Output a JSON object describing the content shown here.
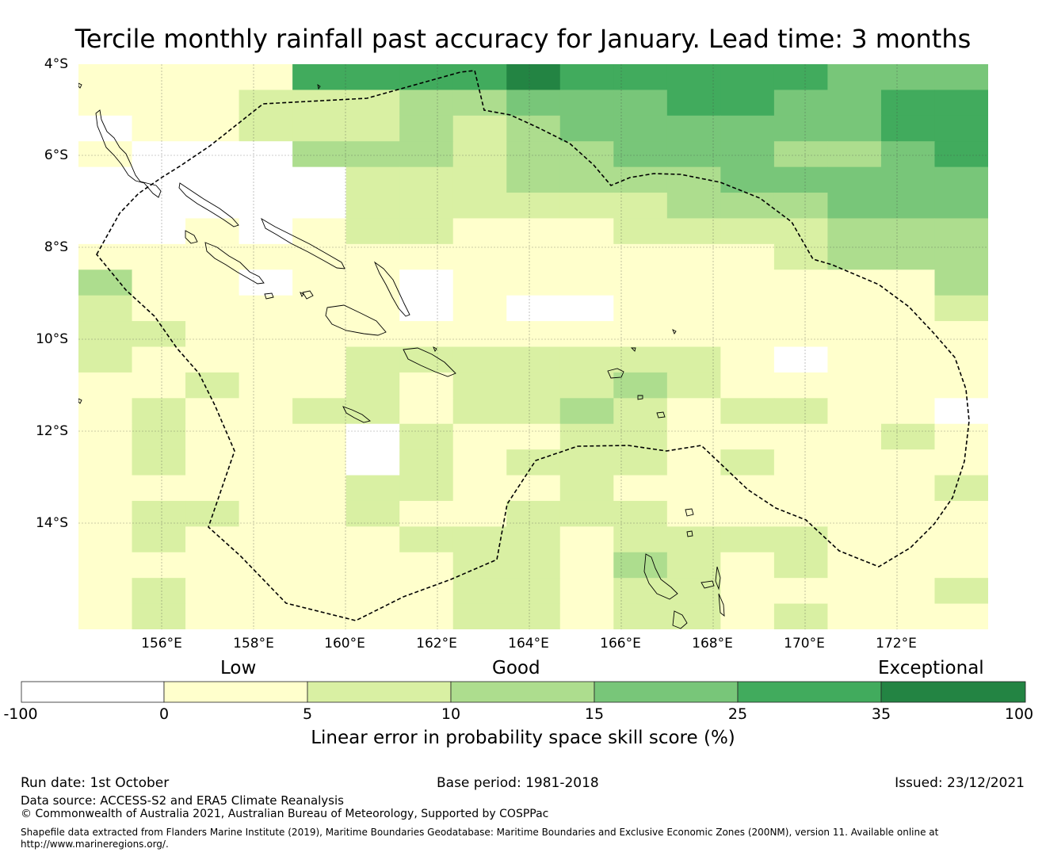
{
  "title": "Tercile monthly rainfall past accuracy for January. Lead time: 3 months",
  "axes": {
    "y_labels": [
      "4°S",
      "6°S",
      "8°S",
      "10°S",
      "12°S",
      "14°S"
    ],
    "x_labels": [
      "156°E",
      "158°E",
      "160°E",
      "162°E",
      "164°E",
      "166°E",
      "168°E",
      "170°E",
      "172°E"
    ]
  },
  "legend": {
    "categories": [
      "Low",
      "Good",
      "Exceptional"
    ],
    "ticks": [
      "-100",
      "0",
      "5",
      "10",
      "15",
      "25",
      "35",
      "100"
    ],
    "colors": [
      "#ffffff",
      "#ffffcc",
      "#d9f0a3",
      "#addd8e",
      "#78c679",
      "#41ab5d",
      "#238443"
    ],
    "label": "Linear error in probability space skill score (%)"
  },
  "footer": {
    "run_date": "Run date: 1st October",
    "base_period": "Base period: 1981-2018",
    "issued": "Issued: 23/12/2021",
    "data_source": "Data source: ACCESS-S2 and ERA5 Climate Reanalysis",
    "copyright": "© Commonwealth of Australia 2021, Australian Bureau of Meteorology, Supported by COSPPac",
    "shapefile_line1": "Shapefile data extracted from Flanders Marine Institute (2019), Maritime Boundaries Geodatabase: Maritime Boundaries and Exclusive Economic Zones (200NM), version 11. Available online at",
    "shapefile_line2": "http://www.marineregions.org/."
  },
  "grid": {
    "lon_start": 154.2,
    "lat_start": -4.0,
    "step": 0.833,
    "rows": [
      "11115555655555444",
      "11122233444554455",
      "01122232344444455",
      "10003332334443345",
      "00000222333344444",
      "00000222222333444",
      "00101221112222333",
      "11111111111112333",
      "31101101111111113",
      "21111101001111112",
      "22111111111111111",
      "21111222222210111",
      "11211212223211111",
      "12112212232122110",
      "12111021122111121",
      "12111021222121111",
      "11111221121111112",
      "12211211222111111",
      "12111122212222111",
      "11111112213212111",
      "12111112212211112",
      "12111112212212111"
    ]
  }
}
